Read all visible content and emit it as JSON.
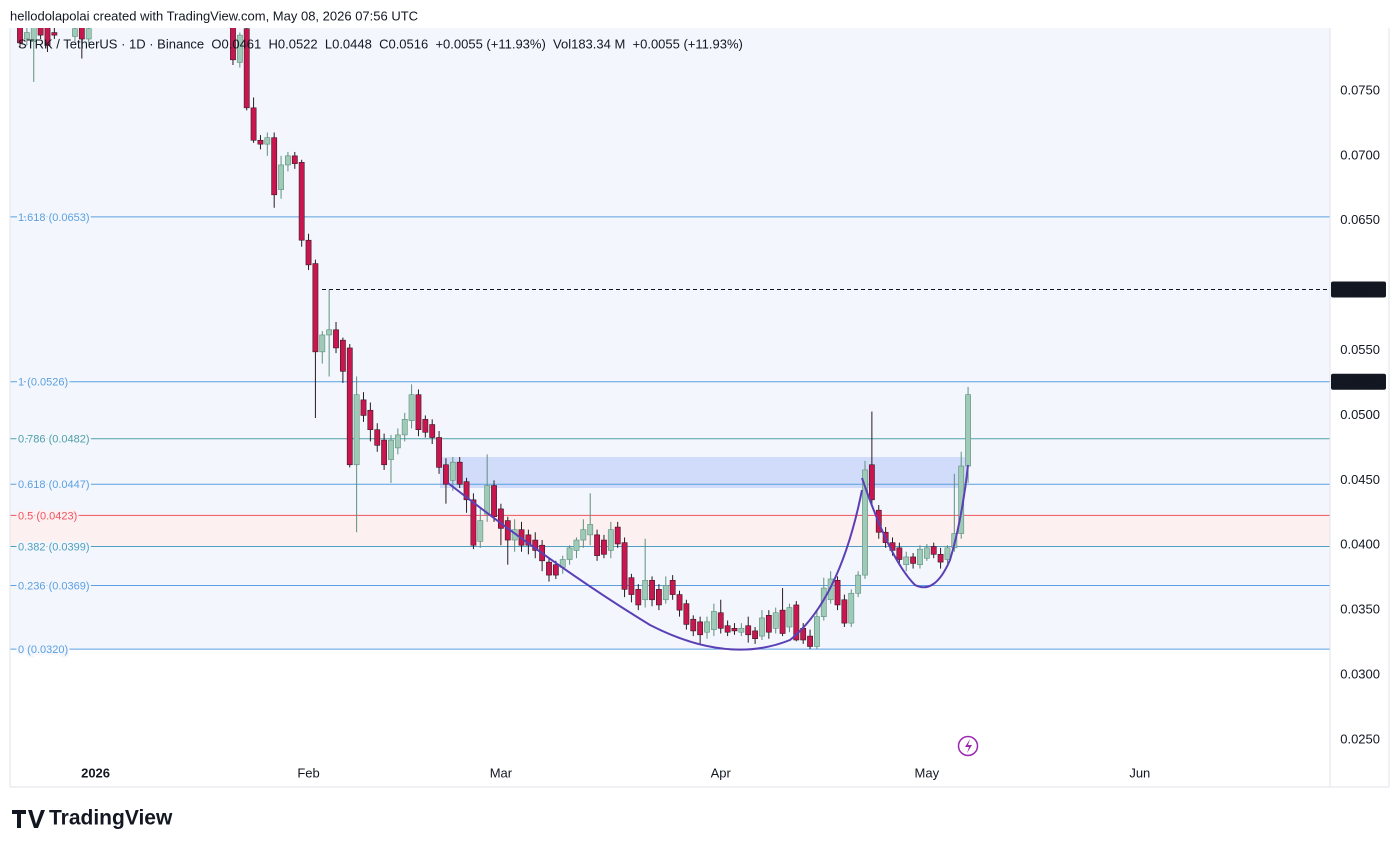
{
  "header": "hellodolapolai created with TradingView.com, May 08, 2026 07:56 UTC",
  "legend": "STRK / TetherUS · 1D · Binance  O0.0461  H0.0522  L0.0448  C0.0516  +0.0055 (+11.93%)  Vol183.34 M  +0.0055 (+11.93%)",
  "brand": "TradingView",
  "chart_data": {
    "type": "candlestick",
    "up_color": "#9ecab7",
    "down_color": "#c8164f",
    "background": "#f3f7fd",
    "ylim": [
      0.0233,
      0.07985
    ],
    "yticks": [
      {
        "value": 0.025,
        "label": "0.0250"
      },
      {
        "value": 0.03,
        "label": "0.0300"
      },
      {
        "value": 0.035,
        "label": "0.0350"
      },
      {
        "value": 0.04,
        "label": "0.0400"
      },
      {
        "value": 0.045,
        "label": "0.0450"
      },
      {
        "value": 0.05,
        "label": "0.0500"
      },
      {
        "value": 0.055,
        "label": "0.0550"
      },
      {
        "value": 0.065,
        "label": "0.0650"
      },
      {
        "value": 0.07,
        "label": "0.0700"
      },
      {
        "value": 0.075,
        "label": "0.0750"
      }
    ],
    "fib_levels": [
      {
        "label": "1.618 (0.0653)",
        "value": 0.0653,
        "color": "#5b9fe0"
      },
      {
        "label": "1 (0.0526)",
        "value": 0.0526,
        "color": "#5b9fe0"
      },
      {
        "label": "0.786 (0.0482)",
        "value": 0.0482,
        "color": "#4f9fa8"
      },
      {
        "label": "0.618 (0.0447)",
        "value": 0.0447,
        "color": "#5b9fe0"
      },
      {
        "label": "0.5 (0.0423)",
        "value": 0.0423,
        "color": "#ef5361",
        "fill": "#fdf0f0"
      },
      {
        "label": "0.382 (0.0399)",
        "value": 0.0399,
        "color": "#4f9fc0"
      },
      {
        "label": "0.236 (0.0369)",
        "value": 0.0369,
        "color": "#5b9fe0"
      },
      {
        "label": "0 (0.0320)",
        "value": 0.032,
        "color": "#5b9fe0"
      }
    ],
    "axis_markers": [
      {
        "value": 0.0597,
        "line": "dashed"
      },
      {
        "value": 0.0526
      }
    ],
    "categories": [
      null,
      null,
      null,
      null,
      null,
      null,
      null,
      null,
      null,
      null,
      null,
      "2026",
      null,
      null,
      null,
      null,
      null,
      null,
      null,
      null,
      null,
      null,
      null,
      null,
      null,
      null,
      null,
      null,
      null,
      null,
      null,
      null,
      null,
      null,
      null,
      null,
      null,
      null,
      null,
      null,
      null,
      null,
      "Feb",
      null,
      null,
      null,
      null,
      null,
      null,
      null,
      null,
      null,
      null,
      null,
      null,
      null,
      null,
      null,
      null,
      null,
      null,
      null,
      null,
      null,
      null,
      null,
      null,
      null,
      null,
      null,
      "Mar",
      null,
      null,
      null,
      null,
      null,
      null,
      null,
      null,
      null,
      null,
      null,
      null,
      null,
      null,
      null,
      null,
      null,
      null,
      null,
      null,
      null,
      null,
      null,
      null,
      null,
      null,
      null,
      null,
      null,
      null,
      null,
      "Apr",
      null,
      null,
      null,
      null,
      null,
      null,
      null,
      null,
      null,
      null,
      null,
      null,
      null,
      null,
      null,
      null,
      null,
      null,
      null,
      null,
      null,
      null,
      null,
      null,
      null,
      null,
      null,
      null,
      null,
      "May",
      null,
      null,
      null,
      null,
      null,
      null,
      null,
      null,
      null,
      null,
      null,
      null,
      null,
      null,
      null,
      null,
      null,
      null,
      null,
      null,
      null,
      null,
      null,
      null,
      null,
      null,
      null,
      null,
      null,
      null,
      "Jun",
      null,
      null,
      null,
      null,
      null,
      null,
      null,
      null,
      null,
      null,
      null,
      null,
      null,
      null,
      null,
      null,
      null,
      null,
      null,
      null,
      null,
      null,
      null,
      null,
      null,
      null,
      null,
      null
    ],
    "ohlc": [
      [
        0.08,
        0.0805,
        0.0784,
        0.0787
      ],
      [
        0.079,
        0.08,
        0.0785,
        0.0795
      ],
      [
        0.0788,
        0.0805,
        0.0757,
        0.08
      ],
      [
        0.0805,
        0.081,
        0.079,
        0.0793
      ],
      [
        0.0802,
        0.0808,
        0.078,
        0.0785
      ],
      [
        0.0795,
        0.0805,
        0.079,
        0.0793
      ],
      null,
      null,
      [
        0.0792,
        0.0805,
        0.0788,
        0.0798
      ],
      [
        0.0805,
        0.081,
        0.0775,
        0.079
      ],
      [
        0.079,
        0.081,
        0.0787,
        0.0798
      ],
      null,
      null,
      null,
      null,
      null,
      null,
      null,
      null,
      null,
      null,
      null,
      null,
      null,
      null,
      null,
      null,
      null,
      null,
      null,
      null,
      [
        0.0799,
        0.0805,
        0.077,
        0.0774
      ],
      [
        0.0772,
        0.0795,
        0.0768,
        0.0793
      ],
      [
        0.0798,
        0.0805,
        0.0735,
        0.0737
      ],
      [
        0.0737,
        0.0745,
        0.071,
        0.0712
      ],
      [
        0.0712,
        0.0716,
        0.0705,
        0.0709
      ],
      [
        0.0709,
        0.0718,
        0.07,
        0.0714
      ],
      [
        0.0714,
        0.0718,
        0.066,
        0.067
      ],
      [
        0.0674,
        0.07,
        0.0667,
        0.0693
      ],
      [
        0.0693,
        0.0703,
        0.0688,
        0.07
      ],
      [
        0.07,
        0.0703,
        0.069,
        0.0694
      ],
      [
        0.0695,
        0.0697,
        0.063,
        0.0635
      ],
      [
        0.0635,
        0.064,
        0.0612,
        0.0616
      ],
      [
        0.0617,
        0.062,
        0.0498,
        0.0549
      ],
      [
        0.0549,
        0.0565,
        0.054,
        0.0562
      ],
      [
        0.0562,
        0.0597,
        0.053,
        0.0566
      ],
      [
        0.0566,
        0.0572,
        0.0548,
        0.0552
      ],
      [
        0.0558,
        0.056,
        0.0525,
        0.0534
      ],
      [
        0.0552,
        0.0555,
        0.046,
        0.0462
      ],
      [
        0.0462,
        0.053,
        0.041,
        0.0516
      ],
      [
        0.0512,
        0.0518,
        0.0495,
        0.05
      ],
      [
        0.0504,
        0.051,
        0.048,
        0.0489
      ],
      [
        0.0489,
        0.0494,
        0.0472,
        0.0477
      ],
      [
        0.0481,
        0.0486,
        0.0458,
        0.0462
      ],
      [
        0.0466,
        0.0485,
        0.0448,
        0.0481
      ],
      [
        0.0475,
        0.049,
        0.047,
        0.0485
      ],
      [
        0.0485,
        0.0502,
        0.048,
        0.0497
      ],
      [
        0.0496,
        0.0524,
        0.049,
        0.0516
      ],
      [
        0.0516,
        0.052,
        0.0484,
        0.0489
      ],
      [
        0.0497,
        0.05,
        0.0483,
        0.0487
      ],
      [
        0.0493,
        0.0497,
        0.0478,
        0.0483
      ],
      [
        0.0483,
        0.0488,
        0.0455,
        0.046
      ],
      [
        0.0462,
        0.0467,
        0.0432,
        0.0447
      ],
      [
        0.045,
        0.0468,
        0.0442,
        0.0464
      ],
      [
        0.0464,
        0.0468,
        0.0444,
        0.0447
      ],
      [
        0.0449,
        0.0452,
        0.0425,
        0.0435
      ],
      [
        0.0435,
        0.044,
        0.0397,
        0.04
      ],
      [
        0.0403,
        0.0428,
        0.0398,
        0.0419
      ],
      [
        0.0424,
        0.047,
        0.0418,
        0.0446
      ],
      [
        0.0446,
        0.045,
        0.0418,
        0.0422
      ],
      [
        0.0428,
        0.0432,
        0.04,
        0.0413
      ],
      [
        0.0419,
        0.0422,
        0.0385,
        0.0404
      ],
      [
        0.0404,
        0.042,
        0.0395,
        0.0412
      ],
      [
        0.0412,
        0.0418,
        0.0395,
        0.04
      ],
      [
        0.0408,
        0.0412,
        0.0393,
        0.04
      ],
      [
        0.0404,
        0.041,
        0.039,
        0.0396
      ],
      [
        0.04,
        0.0404,
        0.038,
        0.0388
      ],
      [
        0.0387,
        0.039,
        0.0372,
        0.0377
      ],
      [
        0.0385,
        0.0388,
        0.0374,
        0.0377
      ],
      [
        0.0383,
        0.0392,
        0.0378,
        0.0389
      ],
      [
        0.0389,
        0.04,
        0.0385,
        0.0398
      ],
      [
        0.0396,
        0.0406,
        0.039,
        0.0404
      ],
      [
        0.0404,
        0.042,
        0.0398,
        0.0412
      ],
      [
        0.0408,
        0.044,
        0.04,
        0.0416
      ],
      [
        0.0408,
        0.0412,
        0.0388,
        0.0392
      ],
      [
        0.0404,
        0.0408,
        0.039,
        0.0393
      ],
      [
        0.0396,
        0.0418,
        0.039,
        0.0412
      ],
      [
        0.0414,
        0.0418,
        0.0398,
        0.0401
      ],
      [
        0.0402,
        0.0406,
        0.036,
        0.0366
      ],
      [
        0.0375,
        0.0378,
        0.0356,
        0.0362
      ],
      [
        0.0366,
        0.037,
        0.035,
        0.0354
      ],
      [
        0.0358,
        0.0405,
        0.0352,
        0.0373
      ],
      [
        0.0373,
        0.0376,
        0.0353,
        0.0358
      ],
      [
        0.0366,
        0.037,
        0.035,
        0.0354
      ],
      [
        0.0358,
        0.0376,
        0.0355,
        0.0369
      ],
      [
        0.0373,
        0.0377,
        0.0358,
        0.0362
      ],
      [
        0.0362,
        0.0365,
        0.0345,
        0.035
      ],
      [
        0.0355,
        0.0358,
        0.0335,
        0.0339
      ],
      [
        0.0343,
        0.0346,
        0.033,
        0.0334
      ],
      [
        0.0341,
        0.0345,
        0.0324,
        0.0331
      ],
      [
        0.0333,
        0.0345,
        0.0328,
        0.0341
      ],
      [
        0.0335,
        0.0355,
        0.033,
        0.0349
      ],
      [
        0.0348,
        0.0358,
        0.0332,
        0.0336
      ],
      [
        0.0338,
        0.0342,
        0.033,
        0.0333
      ],
      [
        0.0336,
        0.034,
        0.0331,
        0.0334
      ],
      [
        0.0333,
        0.034,
        0.033,
        0.0336
      ],
      [
        0.0338,
        0.0345,
        0.0325,
        0.0331
      ],
      [
        0.0334,
        0.0337,
        0.0324,
        0.0328
      ],
      [
        0.033,
        0.035,
        0.0327,
        0.0344
      ],
      [
        0.0346,
        0.035,
        0.0328,
        0.0333
      ],
      [
        0.0336,
        0.0352,
        0.0332,
        0.0348
      ],
      [
        0.035,
        0.0367,
        0.033,
        0.0332
      ],
      [
        0.0337,
        0.0355,
        0.0333,
        0.0352
      ],
      [
        0.0354,
        0.0357,
        0.0326,
        0.0327
      ],
      [
        0.0336,
        0.034,
        0.0324,
        0.0327
      ],
      [
        0.033,
        0.0335,
        0.032,
        0.0322
      ],
      [
        0.0322,
        0.035,
        0.032,
        0.0345
      ],
      [
        0.0345,
        0.0375,
        0.0342,
        0.0367
      ],
      [
        0.0358,
        0.038,
        0.0355,
        0.0374
      ],
      [
        0.0373,
        0.0376,
        0.035,
        0.0354
      ],
      [
        0.0358,
        0.0362,
        0.0337,
        0.034
      ],
      [
        0.034,
        0.0366,
        0.0337,
        0.0363
      ],
      [
        0.0363,
        0.038,
        0.036,
        0.0377
      ],
      [
        0.0377,
        0.0465,
        0.0374,
        0.0458
      ],
      [
        0.0462,
        0.0503,
        0.043,
        0.0435
      ],
      [
        0.0427,
        0.0431,
        0.0405,
        0.041
      ],
      [
        0.041,
        0.0414,
        0.0398,
        0.0402
      ],
      [
        0.0402,
        0.0406,
        0.0392,
        0.0396
      ],
      [
        0.0398,
        0.0402,
        0.0385,
        0.0389
      ],
      [
        0.0385,
        0.0395,
        0.038,
        0.0391
      ],
      [
        0.0391,
        0.0394,
        0.0382,
        0.0386
      ],
      [
        0.0385,
        0.04,
        0.0382,
        0.0397
      ],
      [
        0.039,
        0.0401,
        0.0388,
        0.0398
      ],
      [
        0.0399,
        0.0402,
        0.039,
        0.0393
      ],
      [
        0.0393,
        0.0398,
        0.0382,
        0.0387
      ],
      [
        0.0389,
        0.04,
        0.0386,
        0.0398
      ],
      [
        0.0398,
        0.0455,
        0.0395,
        0.0409
      ],
      [
        0.0409,
        0.0472,
        0.0405,
        0.0461
      ],
      [
        0.0461,
        0.0522,
        0.0448,
        0.0516
      ],
      null,
      null,
      null,
      null,
      null,
      null,
      null,
      null,
      null,
      null,
      null,
      null,
      null,
      null,
      null,
      null,
      null,
      null,
      null,
      null,
      null,
      null,
      null,
      null,
      null,
      null,
      null,
      null,
      null,
      null,
      null,
      null,
      null,
      null,
      null,
      null,
      null,
      null,
      null,
      null,
      null,
      null,
      null,
      null,
      null,
      null,
      null,
      null,
      null,
      null,
      null,
      null
    ]
  }
}
